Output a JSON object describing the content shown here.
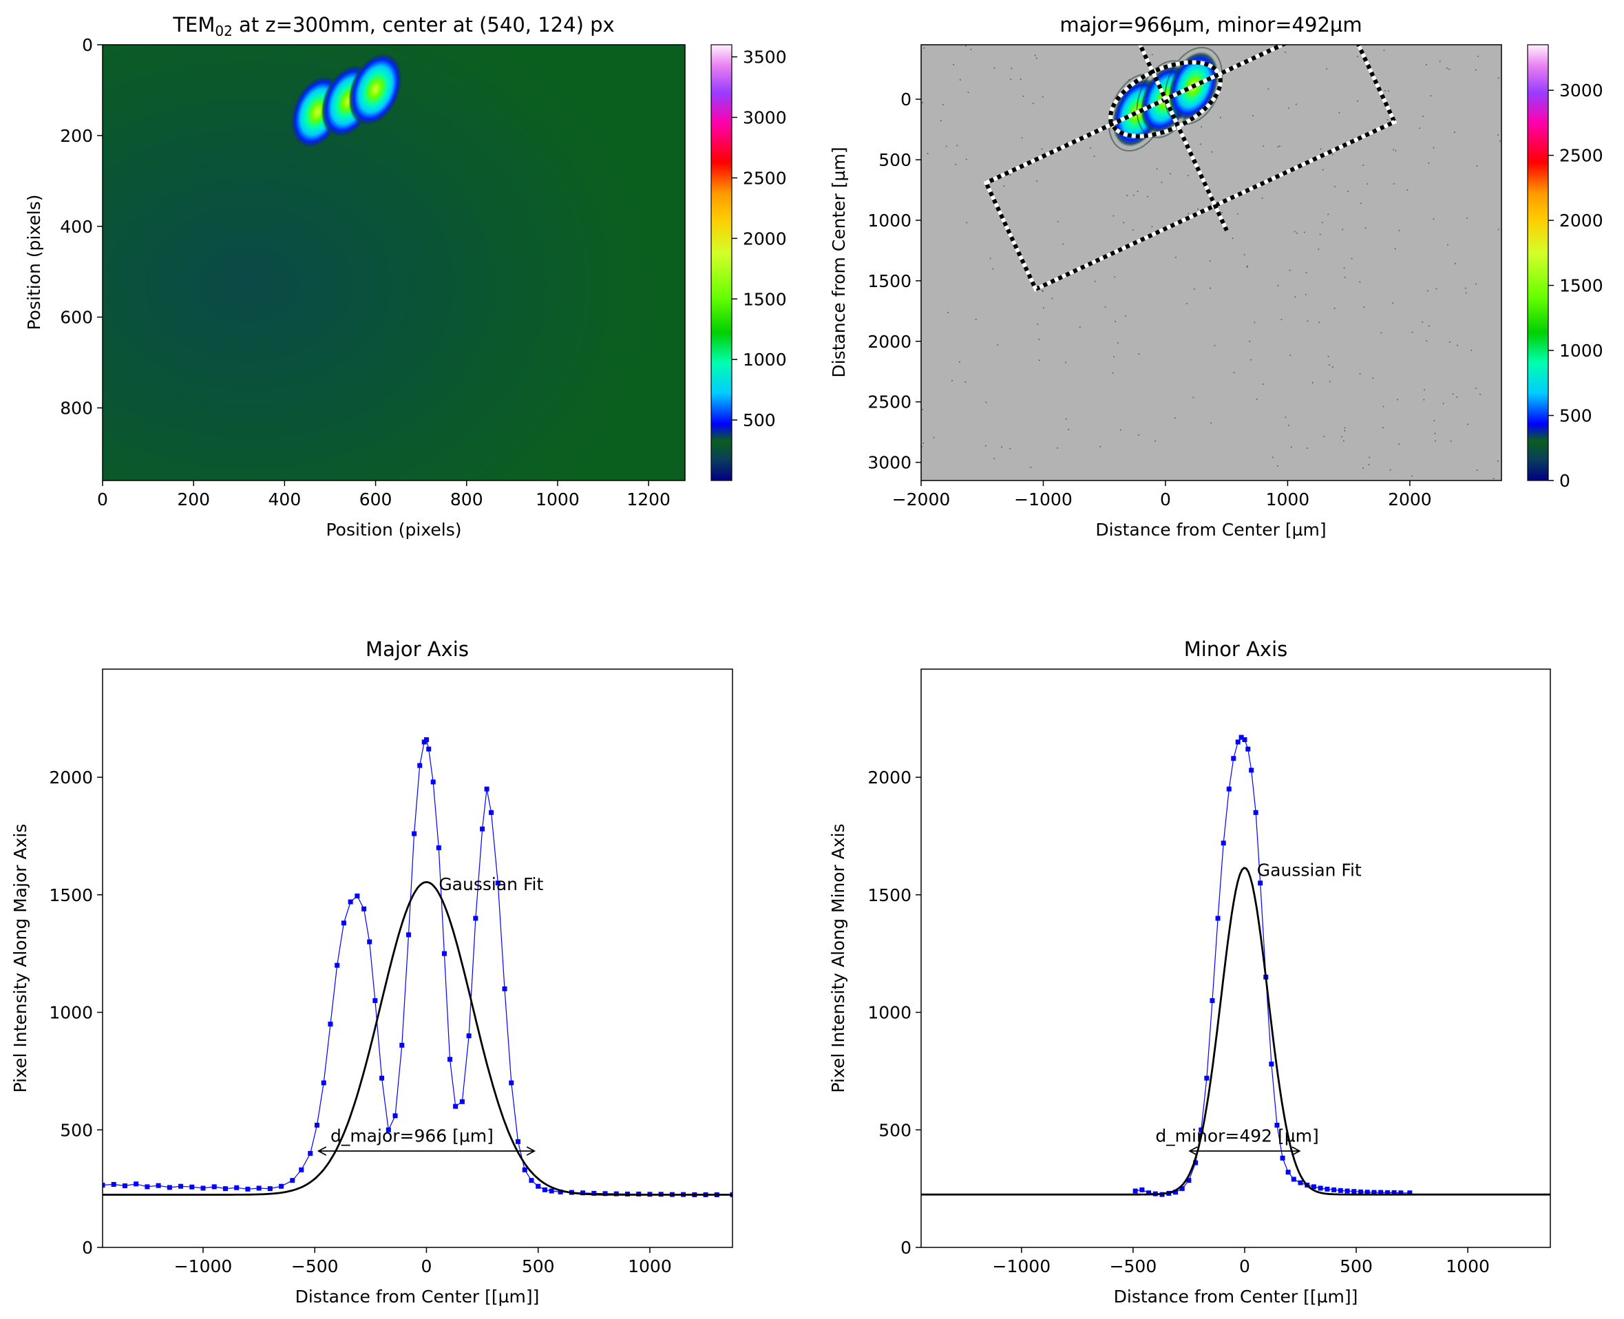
{
  "chart_data": [
    {
      "type": "heatmap",
      "title": "TEM02 at z=300mm, center at (540, 124) px",
      "title_main": "TEM",
      "title_sub": "02",
      "title_rest": " at z=300mm, center at (540, 124) px",
      "xlabel": "Position (pixels)",
      "ylabel": "Position (pixels)",
      "xlim": [
        0,
        1280
      ],
      "ylim": [
        960,
        0
      ],
      "xticks": [
        "0",
        "200",
        "400",
        "600",
        "800",
        "1000",
        "1200"
      ],
      "yticks": [
        "0",
        "200",
        "400",
        "600",
        "800"
      ],
      "colorbar": {
        "range": [
          0,
          3600
        ],
        "ticks": [
          "500",
          "1000",
          "1500",
          "2000",
          "2500",
          "3000",
          "3500"
        ]
      },
      "colormap": "gist_ncar",
      "background_color": "#0a5a1a",
      "lobes": [
        {
          "x": 472,
          "y": 148,
          "peak": 1300
        },
        {
          "x": 540,
          "y": 124,
          "peak": 1200
        },
        {
          "x": 600,
          "y": 98,
          "peak": 1600
        }
      ]
    },
    {
      "type": "heatmap",
      "title": "major=966µm, minor=492µm",
      "xlabel": "Distance from Center [µm]",
      "ylabel": "Distance from Center [µm]",
      "xlim": [
        -2000,
        2750
      ],
      "ylim": [
        3150,
        -450
      ],
      "xticks": [
        "−2000",
        "−1000",
        "0",
        "1000",
        "2000"
      ],
      "yticks": [
        "0",
        "500",
        "1000",
        "1500",
        "2000",
        "2500",
        "3000"
      ],
      "colorbar": {
        "range": [
          0,
          3350
        ],
        "ticks": [
          "0",
          "500",
          "1000",
          "1500",
          "2000",
          "2500",
          "3000"
        ]
      },
      "colormap": "gist_ncar",
      "background_color": "#b3b3b3",
      "ellipse": {
        "major_um": 966,
        "minor_um": 492,
        "angle_deg": -25
      },
      "lobes": [
        {
          "x": -230,
          "y": 110,
          "peak": 1300
        },
        {
          "x": 0,
          "y": 0,
          "peak": 1200
        },
        {
          "x": 230,
          "y": -110,
          "peak": 1600
        }
      ]
    },
    {
      "type": "line",
      "title": "Major Axis",
      "xlabel": "Distance from Center [[µm]]",
      "ylabel": "Pixel Intensity Along Major Axis",
      "xlim": [
        -1450,
        1370
      ],
      "ylim": [
        0,
        2460
      ],
      "xticks": [
        "−1000",
        "−500",
        "0",
        "500",
        "1000"
      ],
      "yticks": [
        "0",
        "500",
        "1000",
        "1500",
        "2000"
      ],
      "series": [
        {
          "color": "#0000ff",
          "marker": "square",
          "x": [
            -1450,
            -1400,
            -1350,
            -1300,
            -1250,
            -1200,
            -1150,
            -1100,
            -1050,
            -1000,
            -950,
            -900,
            -850,
            -800,
            -750,
            -700,
            -650,
            -600,
            -560,
            -520,
            -490,
            -460,
            -430,
            -400,
            -370,
            -340,
            -310,
            -280,
            -255,
            -230,
            -200,
            -170,
            -140,
            -110,
            -80,
            -55,
            -30,
            -10,
            0,
            10,
            30,
            55,
            80,
            105,
            130,
            160,
            190,
            220,
            250,
            270,
            290,
            320,
            350,
            380,
            410,
            440,
            470,
            500,
            530,
            560,
            600,
            650,
            700,
            750,
            800,
            850,
            900,
            950,
            1000,
            1050,
            1100,
            1150,
            1200,
            1250,
            1300,
            1370
          ],
          "y": [
            265,
            268,
            262,
            270,
            258,
            263,
            255,
            260,
            257,
            252,
            258,
            250,
            254,
            248,
            252,
            250,
            260,
            285,
            330,
            400,
            520,
            700,
            950,
            1200,
            1380,
            1470,
            1495,
            1440,
            1300,
            1050,
            720,
            500,
            560,
            860,
            1330,
            1760,
            2050,
            2150,
            2160,
            2120,
            1980,
            1700,
            1250,
            800,
            600,
            620,
            900,
            1400,
            1780,
            1950,
            1850,
            1550,
            1100,
            700,
            450,
            330,
            285,
            260,
            245,
            240,
            236,
            234,
            232,
            230,
            229,
            228,
            227,
            227,
            226,
            226,
            225,
            225,
            224,
            224,
            224,
            224
          ]
        },
        {
          "name": "Gaussian Fit",
          "color": "#000000",
          "kind": "gaussian",
          "amplitude": 1330,
          "center": 0,
          "sigma": 205,
          "offset": 224
        }
      ],
      "annotations": [
        {
          "text": "Gaussian Fit",
          "x": 55,
          "y": 1520
        },
        {
          "text": "d_major=966 [µm]",
          "x": -430,
          "y": 450,
          "arrow_from": -483,
          "arrow_to": 483,
          "arrow_y": 410
        }
      ]
    },
    {
      "type": "line",
      "title": "Minor Axis",
      "xlabel": "Distance from Center [[µm]]",
      "ylabel": "Pixel Intensity Along Minor Axis",
      "xlim": [
        -1450,
        1370
      ],
      "ylim": [
        0,
        2460
      ],
      "xticks": [
        "−1000",
        "−500",
        "0",
        "500",
        "1000"
      ],
      "yticks": [
        "0",
        "500",
        "1000",
        "1500",
        "2000"
      ],
      "series": [
        {
          "color": "#0000ff",
          "marker": "square",
          "x": [
            -490,
            -460,
            -430,
            -400,
            -370,
            -340,
            -310,
            -280,
            -250,
            -220,
            -195,
            -170,
            -145,
            -120,
            -95,
            -70,
            -50,
            -30,
            -15,
            0,
            15,
            30,
            50,
            70,
            95,
            120,
            145,
            170,
            195,
            220,
            250,
            280,
            310,
            340,
            370,
            400,
            430,
            460,
            490,
            520,
            550,
            580,
            610,
            640,
            670,
            700,
            740
          ],
          "y": [
            240,
            245,
            232,
            228,
            225,
            230,
            235,
            250,
            285,
            360,
            500,
            720,
            1050,
            1400,
            1720,
            1950,
            2080,
            2150,
            2170,
            2160,
            2120,
            2030,
            1850,
            1550,
            1150,
            780,
            520,
            380,
            320,
            290,
            275,
            265,
            258,
            252,
            248,
            245,
            242,
            240,
            238,
            236,
            235,
            234,
            234,
            233,
            233,
            232,
            232
          ]
        },
        {
          "name": "Gaussian Fit",
          "color": "#000000",
          "kind": "gaussian",
          "amplitude": 1390,
          "center": 0,
          "sigma": 105,
          "offset": 225
        }
      ],
      "annotations": [
        {
          "text": "Gaussian Fit",
          "x": 55,
          "y": 1580
        },
        {
          "text": "d_minor=492 [µm]",
          "x": -400,
          "y": 450,
          "arrow_from": -246,
          "arrow_to": 246,
          "arrow_y": 410
        }
      ]
    }
  ]
}
